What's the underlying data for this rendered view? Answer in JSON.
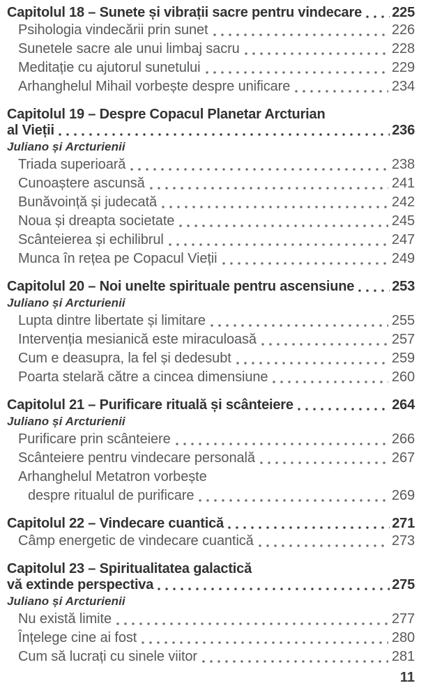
{
  "document": {
    "kind": "book-table-of-contents-page",
    "footer_page_number": "11"
  },
  "colors": {
    "background": "#ffffff",
    "heading_text": "#323234",
    "entry_text": "#58595b",
    "byline_text": "#3a3a3c",
    "leader_dots_entry": "#6b6c6e",
    "leader_dots_heading": "#3c3c3e"
  },
  "toc": {
    "chapters": [
      {
        "lines": [
          "Capitolul 18 – Sunete și vibrații sacre pentru vindecare"
        ],
        "page": "225",
        "byline": "",
        "entries": [
          {
            "lines": [
              "Psihologia vindecării prin sunet"
            ],
            "page": "226"
          },
          {
            "lines": [
              "Sunetele sacre ale unui limbaj sacru"
            ],
            "page": "228"
          },
          {
            "lines": [
              "Meditație cu ajutorul sunetului"
            ],
            "page": "229"
          },
          {
            "lines": [
              "Arhanghelul Mihail vorbește despre unificare"
            ],
            "page": "234"
          }
        ]
      },
      {
        "lines": [
          "Capitolul 19 – Despre Copacul Planetar Arcturian",
          "al Vieții"
        ],
        "page": "236",
        "byline": "Juliano și Arcturienii",
        "entries": [
          {
            "lines": [
              "Triada superioară"
            ],
            "page": "238"
          },
          {
            "lines": [
              "Cunoaștere ascunsă"
            ],
            "page": "241"
          },
          {
            "lines": [
              "Bunăvoință și judecată"
            ],
            "page": "242"
          },
          {
            "lines": [
              "Noua și dreapta societate"
            ],
            "page": "245"
          },
          {
            "lines": [
              "Scânteierea și echilibrul"
            ],
            "page": "247"
          },
          {
            "lines": [
              "Munca în rețea pe Copacul Vieții"
            ],
            "page": "249"
          }
        ]
      },
      {
        "lines": [
          "Capitolul 20 – Noi unelte spirituale pentru ascensiune"
        ],
        "page": "253",
        "byline": "Juliano și Arcturienii",
        "entries": [
          {
            "lines": [
              "Lupta dintre libertate și limitare"
            ],
            "page": "255"
          },
          {
            "lines": [
              "Intervenția mesianică este miraculoasă"
            ],
            "page": "257"
          },
          {
            "lines": [
              "Cum e deasupra, la fel și dedesubt"
            ],
            "page": "259"
          },
          {
            "lines": [
              "Poarta stelară către a cincea dimensiune"
            ],
            "page": "260"
          }
        ]
      },
      {
        "lines": [
          "Capitolul 21 – Purificare rituală și scânteiere"
        ],
        "page": "264",
        "byline": "Juliano și Arcturienii",
        "entries": [
          {
            "lines": [
              "Purificare prin scânteiere"
            ],
            "page": "266"
          },
          {
            "lines": [
              "Scânteiere pentru vindecare personală"
            ],
            "page": "267"
          },
          {
            "lines": [
              "Arhanghelul Metatron vorbește",
              "despre ritualul de purificare"
            ],
            "page": "269"
          }
        ]
      },
      {
        "lines": [
          "Capitolul 22 – Vindecare cuantică"
        ],
        "page": "271",
        "byline": "",
        "entries": [
          {
            "lines": [
              "Câmp energetic de vindecare cuantică"
            ],
            "page": "273"
          }
        ]
      },
      {
        "lines": [
          "Capitolul 23 – Spiritualitatea galactică",
          "vă extinde perspectiva"
        ],
        "page": "275",
        "byline": "Juliano și Arcturienii",
        "entries": [
          {
            "lines": [
              "Nu există limite"
            ],
            "page": "277"
          },
          {
            "lines": [
              "Înțelege cine ai fost"
            ],
            "page": "280"
          },
          {
            "lines": [
              "Cum să lucrați cu sinele viitor"
            ],
            "page": "281"
          }
        ]
      }
    ]
  }
}
